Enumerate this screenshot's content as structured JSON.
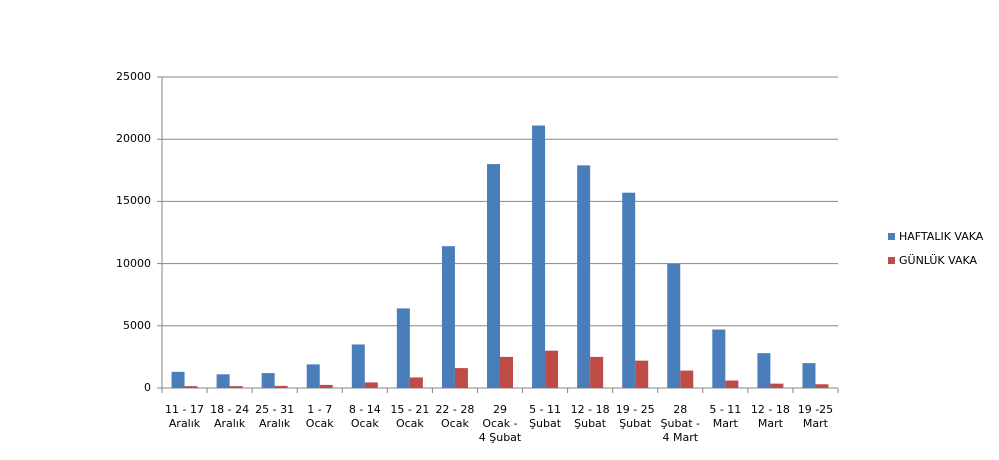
{
  "chart_data": {
    "type": "bar",
    "categories": [
      "11 - 17 Aralık",
      "18 - 24 Aralık",
      "25 - 31 Aralık",
      "1 - 7 Ocak",
      "8 - 14 Ocak",
      "15 - 21 Ocak",
      "22 - 28 Ocak",
      "29 Ocak - 4 Şubat",
      "5 - 11 Şubat",
      "12 - 18 Şubat",
      "19 - 25 Şubat",
      "28 Şubat - 4 Mart",
      "5 - 11 Mart",
      "12 - 18 Mart",
      "19 -25 Mart"
    ],
    "series": [
      {
        "name": "HAFTALIK VAKA",
        "color": "#4a7ebb",
        "values": [
          1300,
          1100,
          1200,
          1900,
          3500,
          6400,
          11400,
          18000,
          21100,
          17900,
          15700,
          10000,
          4700,
          2800,
          2000
        ]
      },
      {
        "name": "GÜNLÜK VAKA",
        "color": "#be4b48",
        "values": [
          150,
          150,
          170,
          250,
          450,
          850,
          1600,
          2500,
          3000,
          2500,
          2200,
          1400,
          600,
          350,
          300
        ]
      }
    ],
    "ylim": [
      0,
      25000
    ],
    "yticks": [
      0,
      5000,
      10000,
      15000,
      20000,
      25000
    ],
    "grid": true,
    "legend": "right"
  }
}
